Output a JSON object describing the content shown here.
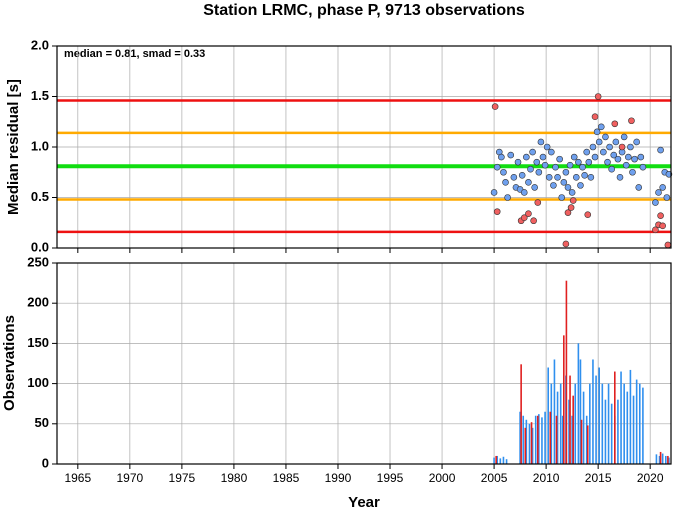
{
  "chart_data": [
    {
      "type": "scatter",
      "title": "Station LRMC, phase P, 9713 observations",
      "ylabel": "Median residual [s]",
      "annotation": "median = 0.81, smad = 0.33",
      "xlim": [
        1963,
        2022
      ],
      "xticks": [
        1965,
        1970,
        1975,
        1980,
        1985,
        1990,
        1995,
        2000,
        2005,
        2010,
        2015,
        2020
      ],
      "ylim": [
        0,
        2
      ],
      "yticks": [
        {
          "value": 0,
          "label": "0.0"
        },
        {
          "value": 0.5,
          "label": "0.5"
        },
        {
          "value": 1,
          "label": "1.0"
        },
        {
          "value": 1.5,
          "label": "1.5"
        },
        {
          "value": 2,
          "label": "2.0"
        }
      ],
      "grid": true,
      "reference_lines": [
        {
          "value": 1.46,
          "color": "#ee1111"
        },
        {
          "value": 1.14,
          "color": "#ffaa00"
        },
        {
          "value": 0.81,
          "color": "#11dd11"
        },
        {
          "value": 0.48,
          "color": "#ffaa00"
        },
        {
          "value": 0.16,
          "color": "#ee1111"
        }
      ],
      "series": [
        {
          "color": "#6fa0ee",
          "x": [
            2005.0,
            2005.3,
            2005.5,
            2005.7,
            2005.9,
            2006.1,
            2006.3,
            2006.6,
            2006.9,
            2007.1,
            2007.3,
            2007.5,
            2007.7,
            2007.9,
            2008.1,
            2008.3,
            2008.5,
            2008.7,
            2008.9,
            2009.1,
            2009.3,
            2009.5,
            2009.7,
            2009.9,
            2010.1,
            2010.3,
            2010.5,
            2010.7,
            2010.9,
            2011.1,
            2011.3,
            2011.5,
            2011.7,
            2011.9,
            2012.1,
            2012.3,
            2012.5,
            2012.7,
            2012.9,
            2013.1,
            2013.3,
            2013.5,
            2013.7,
            2013.9,
            2014.1,
            2014.3,
            2014.5,
            2014.7,
            2014.9,
            2015.1,
            2015.3,
            2015.5,
            2015.7,
            2015.9,
            2016.1,
            2016.3,
            2016.5,
            2016.7,
            2016.9,
            2017.1,
            2017.3,
            2017.5,
            2017.7,
            2017.9,
            2018.1,
            2018.3,
            2018.5,
            2018.7,
            2018.9,
            2019.1,
            2019.3,
            2020.5,
            2020.8,
            2021.0,
            2021.2,
            2021.4,
            2021.6,
            2021.8
          ],
          "values": [
            0.55,
            0.8,
            0.95,
            0.9,
            0.75,
            0.65,
            0.5,
            0.92,
            0.7,
            0.6,
            0.85,
            0.58,
            0.72,
            0.55,
            0.9,
            0.65,
            0.78,
            0.95,
            0.6,
            0.85,
            0.75,
            1.05,
            0.9,
            0.82,
            1.0,
            0.7,
            0.95,
            0.62,
            0.8,
            0.7,
            0.88,
            0.5,
            0.65,
            0.75,
            0.6,
            0.82,
            0.55,
            0.9,
            0.7,
            0.85,
            0.62,
            0.8,
            0.72,
            0.95,
            0.85,
            0.7,
            1.0,
            0.9,
            1.15,
            1.05,
            1.2,
            0.95,
            1.1,
            0.85,
            1.0,
            0.78,
            0.92,
            1.05,
            0.88,
            0.7,
            0.95,
            1.1,
            0.82,
            0.9,
            1.0,
            0.75,
            0.88,
            1.05,
            0.6,
            0.9,
            0.8,
            0.45,
            0.55,
            0.97,
            0.6,
            0.75,
            0.5,
            0.73
          ]
        },
        {
          "color": "#f06060",
          "x": [
            2005.1,
            2005.3,
            2007.6,
            2007.9,
            2008.3,
            2008.8,
            2009.2,
            2011.9,
            2012.1,
            2012.4,
            2012.6,
            2014.0,
            2014.7,
            2015.0,
            2016.6,
            2017.3,
            2018.2,
            2020.5,
            2020.8,
            2021.0,
            2021.2,
            2021.7
          ],
          "values": [
            1.4,
            0.36,
            0.27,
            0.3,
            0.34,
            0.27,
            0.45,
            0.04,
            0.35,
            0.4,
            0.47,
            0.33,
            1.3,
            1.5,
            1.23,
            1.0,
            1.26,
            0.18,
            0.23,
            0.32,
            0.22,
            0.03
          ]
        }
      ]
    },
    {
      "type": "bar",
      "xlabel": "Year",
      "ylabel": "Observations",
      "xlim": [
        1963,
        2022
      ],
      "xticks": [
        1965,
        1970,
        1975,
        1980,
        1985,
        1990,
        1995,
        2000,
        2005,
        2010,
        2015,
        2020
      ],
      "ylim": [
        0,
        250
      ],
      "yticks": [
        0,
        50,
        100,
        150,
        200,
        250
      ],
      "grid": true,
      "series": [
        {
          "color": "#2f8fee",
          "x": [
            2005.0,
            2005.3,
            2005.6,
            2005.9,
            2006.2,
            2007.5,
            2007.8,
            2008.1,
            2008.4,
            2008.7,
            2009.0,
            2009.3,
            2009.6,
            2009.9,
            2010.2,
            2010.5,
            2010.8,
            2011.1,
            2011.4,
            2011.6,
            2011.9,
            2012.2,
            2012.5,
            2012.8,
            2013.1,
            2013.3,
            2013.6,
            2013.9,
            2014.2,
            2014.5,
            2014.8,
            2015.1,
            2015.4,
            2015.7,
            2016.0,
            2016.3,
            2016.6,
            2016.9,
            2017.2,
            2017.5,
            2017.8,
            2018.1,
            2018.4,
            2018.7,
            2019.0,
            2019.3,
            2020.6,
            2020.9,
            2021.2,
            2021.5,
            2021.8
          ],
          "values": [
            8,
            10,
            7,
            9,
            6,
            65,
            60,
            55,
            50,
            45,
            60,
            62,
            58,
            65,
            120,
            100,
            130,
            90,
            100,
            60,
            110,
            80,
            60,
            100,
            150,
            130,
            90,
            60,
            100,
            130,
            110,
            120,
            100,
            80,
            100,
            75,
            60,
            80,
            115,
            100,
            90,
            117,
            85,
            105,
            100,
            95,
            12,
            10,
            13,
            10,
            8
          ]
        },
        {
          "color": "#e02020",
          "x": [
            2005.2,
            2007.6,
            2008.0,
            2008.6,
            2009.2,
            2010.4,
            2011.0,
            2011.7,
            2011.95,
            2012.3,
            2012.6,
            2013.4,
            2014.0,
            2016.6,
            2021.0,
            2021.7
          ],
          "values": [
            10,
            124,
            45,
            52,
            60,
            65,
            60,
            160,
            228,
            110,
            85,
            55,
            48,
            115,
            15,
            10
          ]
        }
      ]
    }
  ]
}
